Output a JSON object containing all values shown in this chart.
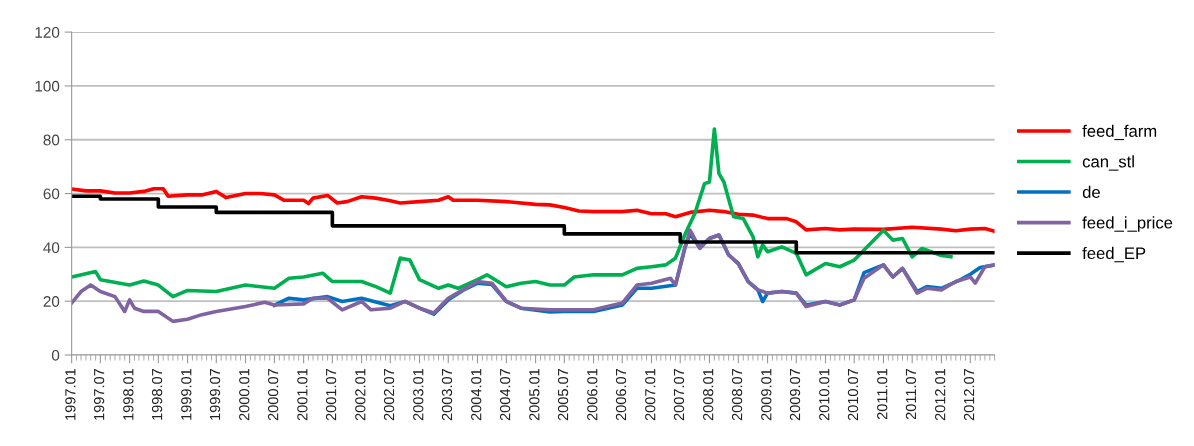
{
  "chart_data": {
    "type": "line",
    "xlim": [
      "1997-01",
      "2012-12"
    ],
    "xticks": [
      {
        "value": "1997-01",
        "label": "1997.01"
      },
      {
        "value": "1997-07",
        "label": "1997.07"
      },
      {
        "value": "1998-01",
        "label": "1998.01"
      },
      {
        "value": "1998-07",
        "label": "1998.07"
      },
      {
        "value": "1999-01",
        "label": "1999.01"
      },
      {
        "value": "1999-07",
        "label": "1999.07"
      },
      {
        "value": "2000-01",
        "label": "2000.01"
      },
      {
        "value": "2000-07",
        "label": "2000.07"
      },
      {
        "value": "2001-01",
        "label": "2001.01"
      },
      {
        "value": "2001-07",
        "label": "2001.07"
      },
      {
        "value": "2002-01",
        "label": "2002.01"
      },
      {
        "value": "2002-07",
        "label": "2002.07"
      },
      {
        "value": "2003-01",
        "label": "2003.01"
      },
      {
        "value": "2003-07",
        "label": "2003.07"
      },
      {
        "value": "2004-01",
        "label": "2004.01"
      },
      {
        "value": "2004-07",
        "label": "2004.07"
      },
      {
        "value": "2005-01",
        "label": "2005.01"
      },
      {
        "value": "2005-07",
        "label": "2005.07"
      },
      {
        "value": "2006-01",
        "label": "2006.01"
      },
      {
        "value": "2006-07",
        "label": "2006.07"
      },
      {
        "value": "2007-01",
        "label": "2007.01"
      },
      {
        "value": "2007-07",
        "label": "2007.07"
      },
      {
        "value": "2008-01",
        "label": "2008.01"
      },
      {
        "value": "2008-07",
        "label": "2008.07"
      },
      {
        "value": "2009-01",
        "label": "2009.01"
      },
      {
        "value": "2009-07",
        "label": "2009.07"
      },
      {
        "value": "2010-01",
        "label": "2010.01"
      },
      {
        "value": "2010-07",
        "label": "2010.07"
      },
      {
        "value": "2011-01",
        "label": "2011.01"
      },
      {
        "value": "2011-07",
        "label": "2011.07"
      },
      {
        "value": "2012-01",
        "label": "2012.01"
      },
      {
        "value": "2012-07",
        "label": "2012.07"
      }
    ],
    "ylim": [
      0,
      120
    ],
    "yticks": [
      0,
      20,
      40,
      60,
      80,
      100,
      120
    ],
    "grid": "y",
    "legend": "right",
    "marker": "none",
    "line_style": "solid",
    "series": [
      {
        "name": "feed_farm",
        "color": "#ff0000",
        "x": [
          "1997-01",
          "1997-04",
          "1997-07",
          "1997-10",
          "1998-01",
          "1998-04",
          "1998-06",
          "1998-08",
          "1998-09",
          "1999-01",
          "1999-04",
          "1999-07",
          "1999-09",
          "2000-01",
          "2000-04",
          "2000-07",
          "2000-09",
          "2001-01",
          "2001-02",
          "2001-03",
          "2001-06",
          "2001-08",
          "2001-10",
          "2002-01",
          "2002-04",
          "2002-07",
          "2002-09",
          "2003-01",
          "2003-05",
          "2003-07",
          "2003-08",
          "2004-01",
          "2004-07",
          "2005-01",
          "2005-04",
          "2005-07",
          "2005-10",
          "2006-01",
          "2006-07",
          "2006-10",
          "2007-01",
          "2007-04",
          "2007-06",
          "2007-09",
          "2008-01",
          "2008-04",
          "2008-07",
          "2008-10",
          "2009-01",
          "2009-05",
          "2009-07",
          "2009-09",
          "2010-01",
          "2010-04",
          "2010-07",
          "2011-01",
          "2011-07",
          "2012-01",
          "2012-04",
          "2012-07",
          "2012-10",
          "2012-12"
        ],
        "values": [
          61.7,
          61,
          61,
          60.2,
          60.2,
          60.8,
          61.8,
          61.8,
          59,
          59.5,
          59.5,
          60.8,
          58.5,
          60,
          60,
          59.5,
          57.5,
          57.5,
          56.3,
          58.3,
          59.3,
          56.5,
          57,
          58.8,
          58.3,
          57.3,
          56.5,
          57,
          57.5,
          58.8,
          57.5,
          57.5,
          57,
          56,
          55.8,
          54.8,
          53.5,
          53.3,
          53.3,
          53.8,
          52.5,
          52.5,
          51.4,
          53,
          53.8,
          53.3,
          52.3,
          52,
          50.7,
          50.7,
          49.5,
          46.5,
          47,
          46.5,
          46.8,
          46.7,
          47.5,
          46.8,
          46.2,
          46.8,
          47,
          46
        ]
      },
      {
        "name": "can_stl",
        "color": "#00b050",
        "x": [
          "1997-01",
          "1997-06",
          "1997-07",
          "1998-01",
          "1998-04",
          "1998-07",
          "1998-10",
          "1999-01",
          "1999-07",
          "2000-01",
          "2000-07",
          "2000-10",
          "2001-01",
          "2001-05",
          "2001-07",
          "2002-01",
          "2002-04",
          "2002-07",
          "2002-09",
          "2002-11",
          "2003-01",
          "2003-05",
          "2003-07",
          "2003-09",
          "2004-01",
          "2004-03",
          "2004-07",
          "2004-10",
          "2005-01",
          "2005-04",
          "2005-07",
          "2005-09",
          "2006-01",
          "2006-07",
          "2006-10",
          "2007-01",
          "2007-04",
          "2007-06",
          "2007-08",
          "2007-10",
          "2007-12",
          "2008-01",
          "2008-02",
          "2008-03",
          "2008-04",
          "2008-06",
          "2008-08",
          "2008-10",
          "2008-11",
          "2008-12",
          "2009-01",
          "2009-04",
          "2009-07",
          "2009-09",
          "2010-01",
          "2010-04",
          "2010-07",
          "2010-09",
          "2011-01",
          "2011-03",
          "2011-05",
          "2011-07",
          "2011-09",
          "2012-01",
          "2012-03"
        ],
        "values": [
          29,
          31,
          28,
          26,
          27.5,
          26,
          21.7,
          24,
          23.6,
          26,
          24.8,
          28.5,
          29,
          30.4,
          27.3,
          27.3,
          25.4,
          23,
          36,
          35.3,
          28,
          24.8,
          26,
          24.8,
          28,
          29.8,
          25.4,
          26.7,
          27.3,
          26,
          26,
          29,
          29.8,
          29.8,
          32.2,
          32.8,
          33.5,
          36,
          45,
          52.6,
          63.7,
          64.3,
          84,
          67.4,
          64.3,
          51.4,
          50.7,
          44,
          36.5,
          40.9,
          38.4,
          40.2,
          37.8,
          29.8,
          34,
          32.8,
          35.3,
          39,
          46.4,
          42.7,
          43.3,
          36.5,
          39.6,
          37,
          36.5
        ]
      },
      {
        "name": "de",
        "color": "#0070c0",
        "x": [
          "2000-07",
          "2000-10",
          "2001-01",
          "2001-06",
          "2001-09",
          "2002-01",
          "2002-07",
          "2002-10",
          "2003-01",
          "2003-04",
          "2003-07",
          "2003-10",
          "2004-01",
          "2004-04",
          "2004-07",
          "2004-10",
          "2005-04",
          "2005-07",
          "2006-01",
          "2006-07",
          "2006-10",
          "2007-01",
          "2007-06",
          "2007-08",
          "2007-09",
          "2007-11",
          "2008-01",
          "2008-03",
          "2008-05",
          "2008-07",
          "2008-09",
          "2008-11",
          "2008-12",
          "2009-01",
          "2009-04",
          "2009-07",
          "2009-09",
          "2010-01",
          "2010-04",
          "2010-07",
          "2010-09",
          "2011-01",
          "2011-03",
          "2011-05",
          "2011-08",
          "2011-10",
          "2012-01",
          "2012-05",
          "2012-07",
          "2012-09",
          "2012-12"
        ],
        "values": [
          18.5,
          21.1,
          20.5,
          21.7,
          19.9,
          21.1,
          18.3,
          19.9,
          17.4,
          15.2,
          20.5,
          24,
          26.7,
          26.2,
          19.9,
          17.4,
          16,
          16.2,
          16.2,
          18.6,
          24.8,
          24.8,
          26,
          40.2,
          45,
          40,
          43.3,
          44.6,
          37.2,
          34,
          27.3,
          24.2,
          19.9,
          23,
          23.6,
          23,
          18.6,
          19.9,
          18.6,
          20.5,
          30.6,
          33.5,
          29,
          32.2,
          23.6,
          25.4,
          24.8,
          28,
          30,
          32.5,
          33.5
        ]
      },
      {
        "name": "feed_i_price",
        "color": "#8064a2",
        "x": [
          "1997-01",
          "1997-03",
          "1997-05",
          "1997-07",
          "1997-10",
          "1997-12",
          "1998-01",
          "1998-02",
          "1998-04",
          "1998-07",
          "1998-10",
          "1999-01",
          "1999-04",
          "1999-07",
          "2000-01",
          "2000-05",
          "2000-07",
          "2001-01",
          "2001-03",
          "2001-06",
          "2001-09",
          "2002-01",
          "2002-03",
          "2002-07",
          "2002-10",
          "2003-01",
          "2003-04",
          "2003-07",
          "2003-10",
          "2004-01",
          "2004-04",
          "2004-07",
          "2004-10",
          "2005-04",
          "2005-07",
          "2006-01",
          "2006-07",
          "2006-10",
          "2007-01",
          "2007-05",
          "2007-06",
          "2007-08",
          "2007-09",
          "2007-11",
          "2008-01",
          "2008-03",
          "2008-05",
          "2008-07",
          "2008-09",
          "2008-11",
          "2009-01",
          "2009-04",
          "2009-07",
          "2009-09",
          "2010-01",
          "2010-04",
          "2010-07",
          "2010-09",
          "2011-01",
          "2011-03",
          "2011-05",
          "2011-08",
          "2011-10",
          "2012-01",
          "2012-04",
          "2012-07",
          "2012-08",
          "2012-10",
          "2012-12"
        ],
        "values": [
          19.3,
          23.6,
          26,
          23.6,
          21.7,
          16.2,
          20.5,
          17.4,
          16.2,
          16.2,
          12.5,
          13.3,
          15,
          16.2,
          18,
          19.6,
          18.6,
          19,
          21.1,
          21.1,
          16.8,
          19.9,
          16.8,
          17.4,
          19.9,
          17.4,
          15.6,
          21.1,
          24.2,
          27.3,
          26.7,
          19.9,
          17.4,
          16.8,
          16.8,
          16.8,
          19.3,
          26,
          26.7,
          28.5,
          26,
          40.2,
          46.4,
          39.6,
          43.3,
          44.6,
          37.2,
          34,
          27.3,
          24.2,
          23,
          23.6,
          23,
          18,
          19.9,
          18.6,
          20.5,
          28.5,
          33.5,
          29,
          32.2,
          23,
          24.8,
          24.2,
          27.3,
          29,
          26.7,
          32.8,
          33.5
        ]
      },
      {
        "name": "feed_EP",
        "color": "#000000",
        "type": "step",
        "x": [
          "1997-01",
          "1997-07",
          "1998-07",
          "1999-07",
          "2001-07",
          "2005-07",
          "2007-07",
          "2009-07",
          "2012-12"
        ],
        "values": [
          59,
          58,
          55,
          53,
          48,
          45,
          42,
          38,
          38
        ]
      }
    ]
  }
}
